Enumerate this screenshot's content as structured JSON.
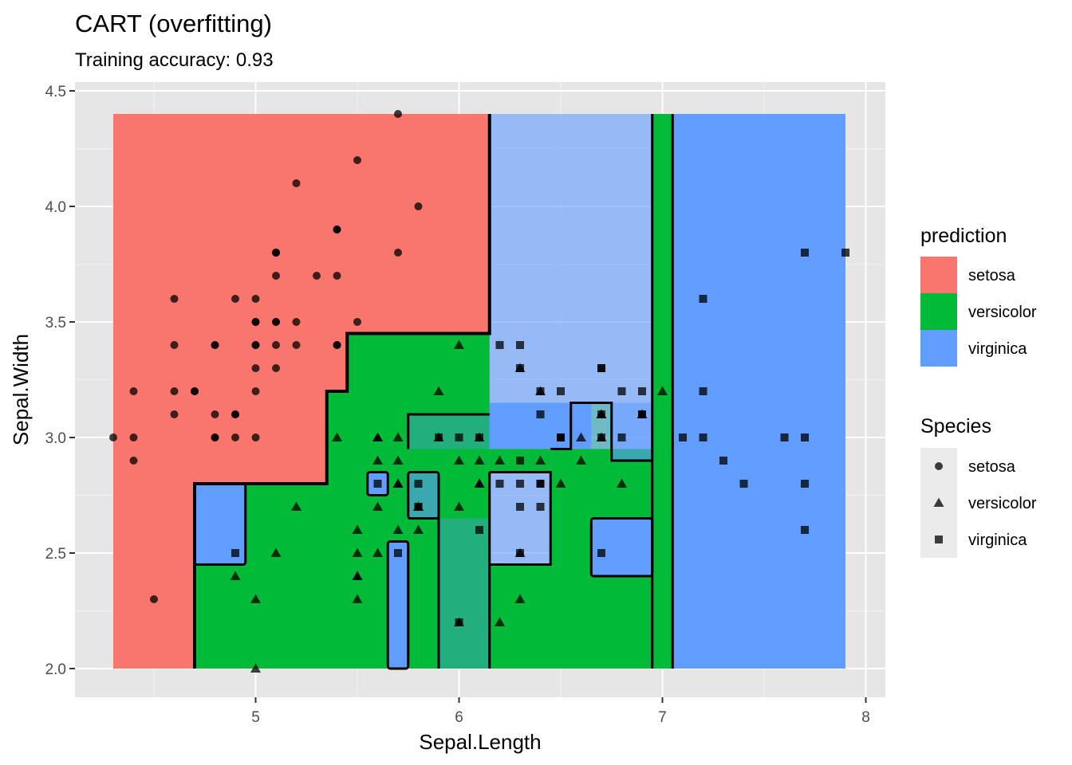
{
  "chart_data": {
    "type": "scatter",
    "title": "CART (overfitting)",
    "subtitle": "Training accuracy: 0.93",
    "xlabel": "Sepal.Length",
    "ylabel": "Sepal.Width",
    "xlim": [
      4.3,
      7.9
    ],
    "ylim": [
      2.0,
      4.4
    ],
    "x_ticks": [
      "5",
      "6",
      "7",
      "8"
    ],
    "y_ticks": [
      "2.0",
      "2.5",
      "3.0",
      "3.5",
      "4.0",
      "4.5"
    ],
    "grid": true,
    "background": "#e6e6e6",
    "legends": [
      {
        "title": "prediction",
        "placement": "right",
        "entries": [
          {
            "label": "setosa",
            "color": "#f8766d"
          },
          {
            "label": "versicolor",
            "color": "#00ba38"
          },
          {
            "label": "virginica",
            "color": "#619cff"
          }
        ]
      },
      {
        "title": "Species",
        "placement": "right",
        "entries": [
          {
            "label": "setosa",
            "shape": "circle"
          },
          {
            "label": "versicolor",
            "shape": "triangle"
          },
          {
            "label": "virginica",
            "shape": "square"
          }
        ]
      }
    ],
    "prediction_regions": [
      {
        "class": "setosa",
        "x": [
          4.3,
          6.15
        ],
        "y": [
          2.0,
          4.4
        ]
      },
      {
        "class": "virginica",
        "x": [
          6.15,
          7.05
        ],
        "y": [
          2.0,
          4.4
        ],
        "alpha": 0.6
      },
      {
        "class": "virginica",
        "x": [
          7.05,
          7.9
        ],
        "y": [
          2.0,
          4.4
        ]
      },
      {
        "class": "versicolor",
        "x": [
          4.7,
          6.15
        ],
        "y": [
          2.0,
          2.8
        ]
      },
      {
        "class": "versicolor",
        "x": [
          5.35,
          6.15
        ],
        "y": [
          2.8,
          3.2
        ]
      },
      {
        "class": "versicolor",
        "x": [
          5.45,
          6.15
        ],
        "y": [
          3.2,
          3.45
        ]
      },
      {
        "class": "virginica",
        "x": [
          4.7,
          4.95
        ],
        "y": [
          2.45,
          2.8
        ]
      },
      {
        "class": "virginica",
        "x": [
          5.55,
          5.65
        ],
        "y": [
          2.75,
          2.85
        ]
      },
      {
        "class": "virginica",
        "x": [
          5.65,
          5.75
        ],
        "y": [
          2.0,
          2.55
        ]
      },
      {
        "class": "virginica",
        "x": [
          5.75,
          5.9
        ],
        "y": [
          2.65,
          2.85
        ],
        "alpha": 0.6
      },
      {
        "class": "virginica",
        "x": [
          5.9,
          6.15
        ],
        "y": [
          2.0,
          2.65
        ],
        "alpha": 0.35
      },
      {
        "class": "virginica",
        "x": [
          5.75,
          6.15
        ],
        "y": [
          2.95,
          3.1
        ],
        "alpha": 0.35
      },
      {
        "class": "versicolor",
        "x": [
          6.15,
          6.95
        ],
        "y": [
          2.0,
          2.45
        ]
      },
      {
        "class": "versicolor",
        "x": [
          6.45,
          6.95
        ],
        "y": [
          2.45,
          2.95
        ]
      },
      {
        "class": "versicolor",
        "x": [
          6.95,
          7.05
        ],
        "y": [
          2.0,
          4.4
        ]
      },
      {
        "class": "versicolor",
        "x": [
          6.15,
          6.45
        ],
        "y": [
          2.85,
          2.95
        ]
      },
      {
        "class": "virginica",
        "x": [
          6.65,
          6.95
        ],
        "y": [
          2.4,
          2.65
        ]
      },
      {
        "class": "virginica",
        "x": [
          6.15,
          6.55
        ],
        "y": [
          2.95,
          3.15
        ]
      },
      {
        "class": "virginica",
        "x": [
          6.55,
          6.65
        ],
        "y": [
          2.95,
          3.15
        ]
      },
      {
        "class": "versicolor",
        "x": [
          6.65,
          6.75
        ],
        "y": [
          2.9,
          3.15
        ],
        "alpha": 0.25
      },
      {
        "class": "virginica",
        "x": [
          6.75,
          6.95
        ],
        "y": [
          2.9,
          3.15
        ],
        "alpha": 0.6
      }
    ],
    "series": [
      {
        "name": "setosa",
        "shape": "circle",
        "points": [
          [
            5.1,
            3.5
          ],
          [
            4.9,
            3.0
          ],
          [
            4.7,
            3.2
          ],
          [
            4.6,
            3.1
          ],
          [
            5.0,
            3.6
          ],
          [
            5.4,
            3.9
          ],
          [
            4.6,
            3.4
          ],
          [
            5.0,
            3.4
          ],
          [
            4.4,
            2.9
          ],
          [
            4.9,
            3.1
          ],
          [
            5.4,
            3.7
          ],
          [
            4.8,
            3.4
          ],
          [
            4.8,
            3.0
          ],
          [
            4.3,
            3.0
          ],
          [
            5.8,
            4.0
          ],
          [
            5.7,
            4.4
          ],
          [
            5.4,
            3.9
          ],
          [
            5.1,
            3.5
          ],
          [
            5.7,
            3.8
          ],
          [
            5.1,
            3.8
          ],
          [
            5.4,
            3.4
          ],
          [
            5.1,
            3.7
          ],
          [
            4.6,
            3.6
          ],
          [
            5.1,
            3.3
          ],
          [
            4.8,
            3.4
          ],
          [
            5.0,
            3.0
          ],
          [
            5.0,
            3.4
          ],
          [
            5.2,
            3.5
          ],
          [
            5.2,
            3.4
          ],
          [
            4.7,
            3.2
          ],
          [
            4.8,
            3.1
          ],
          [
            5.4,
            3.4
          ],
          [
            5.2,
            4.1
          ],
          [
            5.5,
            4.2
          ],
          [
            4.9,
            3.1
          ],
          [
            5.0,
            3.2
          ],
          [
            5.5,
            3.5
          ],
          [
            4.9,
            3.6
          ],
          [
            4.4,
            3.0
          ],
          [
            5.1,
            3.4
          ],
          [
            5.0,
            3.5
          ],
          [
            4.5,
            2.3
          ],
          [
            4.4,
            3.2
          ],
          [
            5.0,
            3.5
          ],
          [
            5.1,
            3.8
          ],
          [
            4.8,
            3.0
          ],
          [
            5.1,
            3.8
          ],
          [
            4.6,
            3.2
          ],
          [
            5.3,
            3.7
          ],
          [
            5.0,
            3.3
          ]
        ]
      },
      {
        "name": "versicolor",
        "shape": "triangle",
        "points": [
          [
            7.0,
            3.2
          ],
          [
            6.4,
            3.2
          ],
          [
            6.9,
            3.1
          ],
          [
            5.5,
            2.3
          ],
          [
            6.5,
            2.8
          ],
          [
            5.7,
            2.8
          ],
          [
            6.3,
            3.3
          ],
          [
            4.9,
            2.4
          ],
          [
            6.6,
            2.9
          ],
          [
            5.2,
            2.7
          ],
          [
            5.0,
            2.0
          ],
          [
            5.9,
            3.0
          ],
          [
            6.0,
            2.2
          ],
          [
            6.1,
            2.9
          ],
          [
            5.6,
            2.9
          ],
          [
            6.7,
            3.1
          ],
          [
            5.6,
            3.0
          ],
          [
            5.8,
            2.7
          ],
          [
            6.2,
            2.2
          ],
          [
            5.6,
            2.5
          ],
          [
            5.9,
            3.2
          ],
          [
            6.1,
            2.8
          ],
          [
            6.3,
            2.5
          ],
          [
            6.1,
            2.8
          ],
          [
            6.4,
            2.9
          ],
          [
            6.6,
            3.0
          ],
          [
            6.8,
            2.8
          ],
          [
            6.7,
            3.0
          ],
          [
            6.0,
            2.9
          ],
          [
            5.7,
            2.6
          ],
          [
            5.5,
            2.4
          ],
          [
            5.5,
            2.4
          ],
          [
            5.8,
            2.7
          ],
          [
            6.0,
            2.7
          ],
          [
            5.4,
            3.0
          ],
          [
            6.0,
            3.4
          ],
          [
            6.7,
            3.1
          ],
          [
            6.3,
            2.3
          ],
          [
            5.6,
            3.0
          ],
          [
            5.5,
            2.5
          ],
          [
            5.5,
            2.6
          ],
          [
            6.1,
            3.0
          ],
          [
            5.8,
            2.6
          ],
          [
            5.0,
            2.3
          ],
          [
            5.6,
            2.7
          ],
          [
            5.7,
            3.0
          ],
          [
            5.7,
            2.9
          ],
          [
            6.2,
            2.9
          ],
          [
            5.1,
            2.5
          ],
          [
            5.7,
            2.8
          ]
        ]
      },
      {
        "name": "virginica",
        "shape": "square",
        "points": [
          [
            6.3,
            3.3
          ],
          [
            5.8,
            2.7
          ],
          [
            7.1,
            3.0
          ],
          [
            6.3,
            2.9
          ],
          [
            6.5,
            3.0
          ],
          [
            7.6,
            3.0
          ],
          [
            4.9,
            2.5
          ],
          [
            7.3,
            2.9
          ],
          [
            6.7,
            2.5
          ],
          [
            7.2,
            3.6
          ],
          [
            6.5,
            3.2
          ],
          [
            6.4,
            2.7
          ],
          [
            6.8,
            3.0
          ],
          [
            5.7,
            2.5
          ],
          [
            5.8,
            2.8
          ],
          [
            6.4,
            3.2
          ],
          [
            6.5,
            3.0
          ],
          [
            7.7,
            3.8
          ],
          [
            7.7,
            2.6
          ],
          [
            6.0,
            2.2
          ],
          [
            6.9,
            3.2
          ],
          [
            5.6,
            2.8
          ],
          [
            7.7,
            2.8
          ],
          [
            6.3,
            2.7
          ],
          [
            6.7,
            3.3
          ],
          [
            7.2,
            3.2
          ],
          [
            6.2,
            2.8
          ],
          [
            6.1,
            3.0
          ],
          [
            6.4,
            2.8
          ],
          [
            7.2,
            3.0
          ],
          [
            7.4,
            2.8
          ],
          [
            7.9,
            3.8
          ],
          [
            6.4,
            2.8
          ],
          [
            6.3,
            2.8
          ],
          [
            6.1,
            2.6
          ],
          [
            7.7,
            3.0
          ],
          [
            6.3,
            3.4
          ],
          [
            6.4,
            3.1
          ],
          [
            6.0,
            3.0
          ],
          [
            6.9,
            3.1
          ],
          [
            6.7,
            3.1
          ],
          [
            6.9,
            3.1
          ],
          [
            5.8,
            2.7
          ],
          [
            6.8,
            3.2
          ],
          [
            6.7,
            3.3
          ],
          [
            6.7,
            3.0
          ],
          [
            6.3,
            2.5
          ],
          [
            6.5,
            3.0
          ],
          [
            6.2,
            3.4
          ],
          [
            5.9,
            3.0
          ]
        ]
      }
    ]
  }
}
